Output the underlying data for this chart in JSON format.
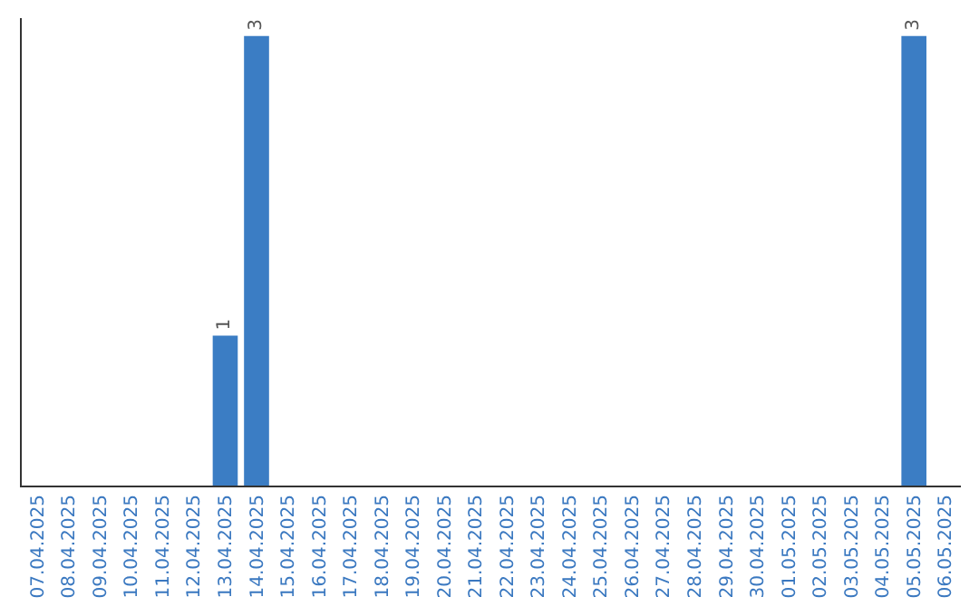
{
  "chart_data": {
    "type": "bar",
    "categories": [
      "07.04.2025",
      "08.04.2025",
      "09.04.2025",
      "10.04.2025",
      "11.04.2025",
      "12.04.2025",
      "13.04.2025",
      "14.04.2025",
      "15.04.2025",
      "16.04.2025",
      "17.04.2025",
      "18.04.2025",
      "19.04.2025",
      "20.04.2025",
      "21.04.2025",
      "22.04.2025",
      "23.04.2025",
      "24.04.2025",
      "25.04.2025",
      "26.04.2025",
      "27.04.2025",
      "28.04.2025",
      "29.04.2025",
      "30.04.2025",
      "01.05.2025",
      "02.05.2025",
      "03.05.2025",
      "04.05.2025",
      "05.05.2025",
      "06.05.2025"
    ],
    "values": [
      0,
      0,
      0,
      0,
      0,
      0,
      1,
      3,
      0,
      0,
      0,
      0,
      0,
      0,
      0,
      0,
      0,
      0,
      0,
      0,
      0,
      0,
      0,
      0,
      0,
      0,
      0,
      0,
      3,
      0
    ],
    "value_labels": [
      null,
      null,
      null,
      null,
      null,
      null,
      "1",
      "3",
      null,
      null,
      null,
      null,
      null,
      null,
      null,
      null,
      null,
      null,
      null,
      null,
      null,
      null,
      null,
      null,
      null,
      null,
      null,
      null,
      "3",
      null
    ],
    "color": "#3b7dc4",
    "grid": false
  }
}
